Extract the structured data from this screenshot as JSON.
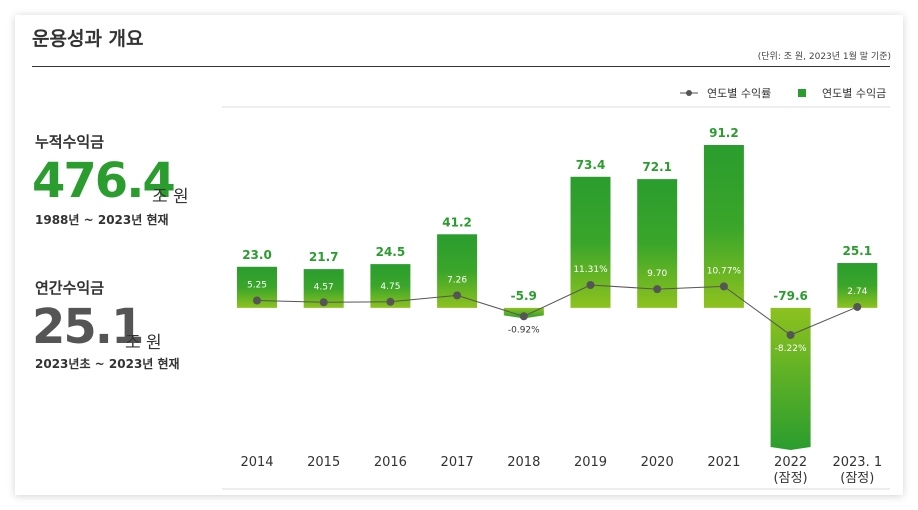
{
  "header": {
    "title": "운용성과 개요",
    "unit": "(단위: 조 원, 2023년 1월 말 기준)"
  },
  "summary": [
    {
      "label": "누적수익금",
      "value": 476.4,
      "unit": "조 원",
      "period": "1988년 ~ 2023년 현재"
    },
    {
      "label": "연간수익금",
      "value": 25.1,
      "unit": "조 원",
      "period": "2023년초 ~ 2023년 현재"
    }
  ],
  "chart_data": {
    "type": "bar",
    "categories": [
      "2014",
      "2015",
      "2016",
      "2017",
      "2018",
      "2019",
      "2020",
      "2021",
      "2022\n(잠정)",
      "2023. 1\n(잠정)"
    ],
    "series": [
      {
        "name": "연도별 수익금",
        "type": "bar",
        "color": "#2a9d2e",
        "values": [
          23.0,
          21.7,
          24.5,
          41.2,
          -5.9,
          73.4,
          72.1,
          91.2,
          -79.6,
          25.1
        ],
        "value_labels": [
          "23.0",
          "21.7",
          "24.5",
          "41.2",
          "-5.9",
          "73.4",
          "72.1",
          "91.2",
          "-79.6",
          "25.1"
        ]
      },
      {
        "name": "연도별 수익률",
        "type": "line",
        "color": "#555555",
        "values": [
          5.25,
          4.57,
          4.75,
          7.26,
          -0.92,
          11.31,
          9.7,
          10.77,
          -8.22,
          2.74
        ],
        "value_labels": [
          "5.25",
          "4.57",
          "4.75",
          "7.26",
          "-0.92%",
          "11.31%",
          "9.70",
          "10.77%",
          "-8.22%",
          "2.74"
        ]
      }
    ]
  }
}
